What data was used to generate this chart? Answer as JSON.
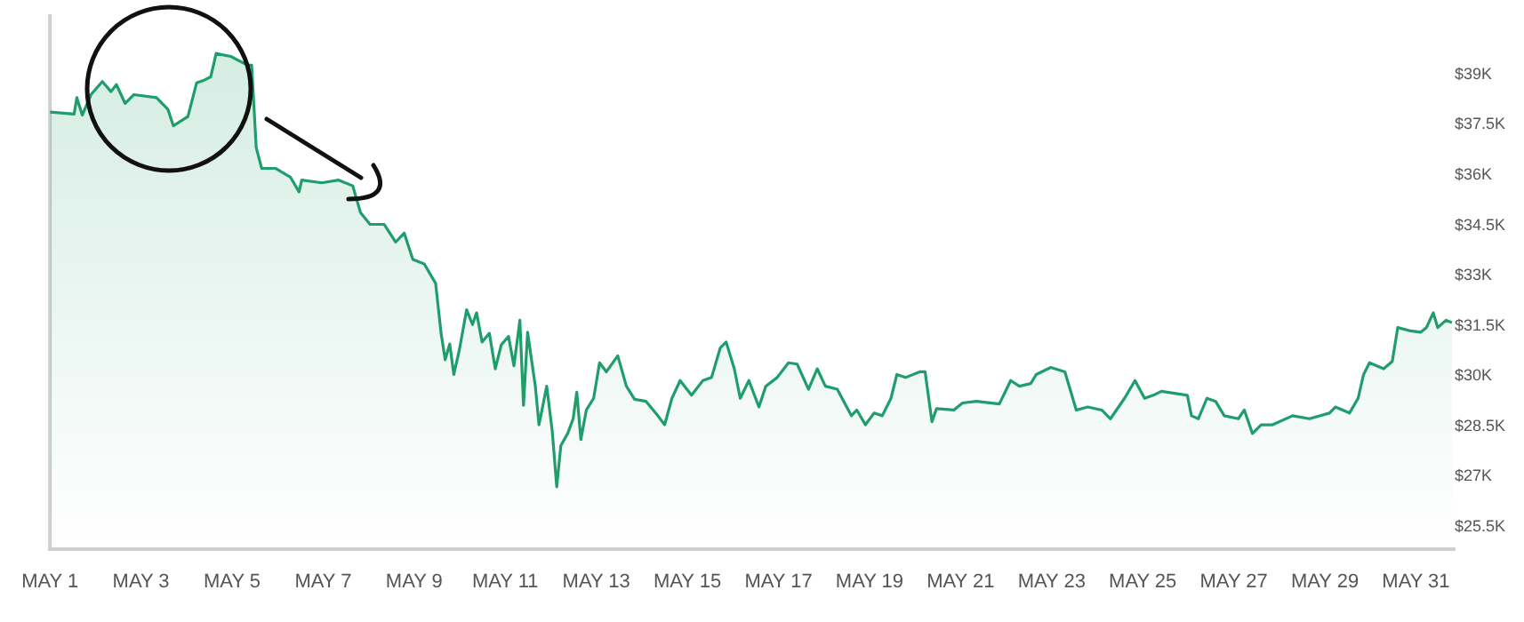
{
  "chart_data": {
    "type": "area",
    "x": [
      "--05-01T00:00",
      "--05-01T12:43",
      "--05-01T14:10",
      "--05-01T17:02",
      "--05-01T21:36",
      "--05-02T03:36",
      "--05-02T08:10",
      "--05-02T11:02",
      "--05-02T15:36",
      "--05-02T20:10",
      "--05-03T08:10",
      "--05-03T14:10",
      "--05-03T17:02",
      "--05-04T00:43",
      "--05-04T05:17",
      "--05-04T09:36",
      "--05-04T12:43",
      "--05-04T15:36",
      "--05-04T23:17",
      "--05-05T08:10",
      "--05-05T10:19",
      "--05-05T12:43",
      "--05-05T15:36",
      "--05-05T23:02",
      "--05-06T06:43",
      "--05-06T11:17",
      "--05-06T12:43",
      "--05-06T23:17",
      "--05-07T08:10",
      "--05-07T15:36",
      "--05-07T19:41",
      "--05-08T00:43",
      "--05-08T08:10",
      "--05-08T14:10",
      "--05-08T18:43",
      "--05-08T23:17",
      "--05-09T05:17",
      "--05-09T11:17",
      "--05-09T14:10",
      "--05-09T16:19",
      "--05-09T18:43",
      "--05-09T20:53",
      "--05-09T23:46",
      "--05-10T03:36",
      "--05-10T06:43",
      "--05-10T08:53",
      "--05-10T11:46",
      "--05-10T15:36",
      "--05-10T18:43",
      "--05-10T21:50",
      "--05-11T01:41",
      "--05-11T04:34",
      "--05-11T07:41",
      "--05-11T09:36",
      "--05-11T11:46",
      "--05-11T15:50",
      "--05-11T17:46",
      "--05-11T21:50",
      "--05-12T00:43",
      "--05-12T03:07",
      "--05-12T05:17",
      "--05-12T08:53",
      "--05-12T11:46",
      "--05-12T13:41",
      "--05-12T15:50",
      "--05-12T18:43",
      "--05-12T22:34",
      "--05-13T01:41",
      "--05-13T05:17",
      "--05-13T11:17",
      "--05-13T15:50",
      "--05-13T20:10",
      "--05-14T02:10",
      "--05-14T08:24",
      "--05-14T12:00",
      "--05-14T15:50",
      "--05-14T20:10",
      "--05-15T02:10",
      "--05-15T08:10",
      "--05-15T12:43",
      "--05-15T17:17",
      "--05-15T20:24",
      "--05-16T00:43",
      "--05-16T03:50",
      "--05-16T08:24",
      "--05-16T13:41",
      "--05-16T17:17",
      "--05-16T23:17",
      "--05-17T05:17",
      "--05-17T09:50",
      "--05-17T15:50",
      "--05-17T20:24",
      "--05-18T00:43",
      "--05-18T06:58",
      "--05-18T14:24",
      "--05-18T17:17",
      "--05-18T21:50",
      "--05-19T02:24",
      "--05-19T06:43",
      "--05-19T11:17",
      "--05-19T14:24",
      "--05-19T18:58",
      "--05-20T02:24",
      "--05-20T05:17",
      "--05-20T08:53",
      "--05-20T11:17",
      "--05-20T20:24",
      "--05-21T00:58",
      "--05-21T08:24",
      "--05-21T20:24",
      "--05-22T02:24",
      "--05-22T06:58",
      "--05-22T12:58",
      "--05-22T15:50",
      "--05-22T23:31",
      "--05-23T06:58",
      "--05-23T12:58",
      "--05-23T18:58",
      "--05-24T02:24",
      "--05-24T06:58",
      "--05-24T14:24",
      "--05-24T19:55",
      "--05-25T00:58",
      "--05-25T05:31",
      "--05-25T09:50",
      "--05-25T23:31",
      "--05-26T01:41",
      "--05-26T05:17",
      "--05-26T09:50",
      "--05-26T14:24",
      "--05-26T18:58",
      "--05-27T02:24",
      "--05-27T05:31",
      "--05-27T09:50",
      "--05-27T14:24",
      "--05-27T20:24",
      "--05-28T06:58",
      "--05-28T15:50",
      "--05-29T02:24",
      "--05-29T05:31",
      "--05-29T12:58",
      "--05-29T17:31",
      "--05-29T20:24",
      "--05-29T23:31",
      "--05-30T06:58",
      "--05-30T11:31",
      "--05-30T14:24",
      "--05-30T20:24",
      "--05-31T02:24",
      "--05-31T05:31",
      "--05-31T09:07",
      "--05-31T11:31",
      "--05-31T15:50",
      "--05-31T18:58"
    ],
    "series": [
      {
        "color": "#1f9d6c",
        "values": [
          37880,
          37820,
          38310,
          37790,
          38400,
          38790,
          38490,
          38700,
          38140,
          38400,
          38310,
          37960,
          37470,
          37750,
          38750,
          38840,
          38930,
          39630,
          39540,
          39280,
          39280,
          36820,
          36200,
          36200,
          35940,
          35500,
          35850,
          35770,
          35850,
          35680,
          34880,
          34530,
          34530,
          34000,
          34270,
          33480,
          33350,
          32770,
          31280,
          30490,
          30960,
          30050,
          30780,
          31980,
          31540,
          31890,
          31020,
          31280,
          30220,
          30930,
          31190,
          30310,
          31670,
          29130,
          31310,
          29700,
          28550,
          29700,
          28380,
          26700,
          27930,
          28290,
          28730,
          29520,
          28110,
          28990,
          29340,
          30400,
          30130,
          30610,
          29700,
          29310,
          29250,
          28820,
          28550,
          29340,
          29870,
          29430,
          29870,
          29960,
          30840,
          31020,
          30220,
          29340,
          29870,
          29080,
          29700,
          29960,
          30400,
          30360,
          29610,
          30220,
          29700,
          29610,
          28820,
          28990,
          28550,
          28900,
          28820,
          29340,
          30050,
          29960,
          30130,
          30130,
          28640,
          29030,
          28990,
          29200,
          29250,
          29170,
          29870,
          29700,
          29780,
          30050,
          30260,
          30130,
          28990,
          29080,
          28990,
          28730,
          29340,
          29870,
          29340,
          29430,
          29550,
          29430,
          28820,
          28730,
          29340,
          29250,
          28820,
          28730,
          28990,
          28290,
          28550,
          28550,
          28820,
          28730,
          28900,
          29080,
          28900,
          29340,
          30050,
          30400,
          30220,
          30440,
          31450,
          31360,
          31310,
          31450,
          31890,
          31450,
          31670,
          31600
        ]
      }
    ],
    "xlim": [
      "--05-01T00:00",
      "--05-31T20:24"
    ],
    "xticks": [
      {
        "value": "--05-01",
        "label": "MAY 1"
      },
      {
        "value": "--05-03",
        "label": "MAY 3"
      },
      {
        "value": "--05-05",
        "label": "MAY 5"
      },
      {
        "value": "--05-07",
        "label": "MAY 7"
      },
      {
        "value": "--05-09",
        "label": "MAY 9"
      },
      {
        "value": "--05-11",
        "label": "MAY 11"
      },
      {
        "value": "--05-13",
        "label": "MAY 13"
      },
      {
        "value": "--05-15",
        "label": "MAY 15"
      },
      {
        "value": "--05-17",
        "label": "MAY 17"
      },
      {
        "value": "--05-19",
        "label": "MAY 19"
      },
      {
        "value": "--05-21",
        "label": "MAY 21"
      },
      {
        "value": "--05-23",
        "label": "MAY 23"
      },
      {
        "value": "--05-25",
        "label": "MAY 25"
      },
      {
        "value": "--05-27",
        "label": "MAY 27"
      },
      {
        "value": "--05-29",
        "label": "MAY 29"
      },
      {
        "value": "--05-31",
        "label": "MAY 31"
      }
    ],
    "ylim": [
      24850,
      40800
    ],
    "yticks": [
      {
        "value": 25500,
        "label": "$25.5K"
      },
      {
        "value": 27000,
        "label": "$27K"
      },
      {
        "value": 28500,
        "label": "$28.5K"
      },
      {
        "value": 30000,
        "label": "$30K"
      },
      {
        "value": 31500,
        "label": "$31.5K"
      },
      {
        "value": 33000,
        "label": "$33K"
      },
      {
        "value": 34500,
        "label": "$34.5K"
      },
      {
        "value": 36000,
        "label": "$36K"
      },
      {
        "value": 37500,
        "label": "$37.5K"
      },
      {
        "value": 39000,
        "label": "$39K"
      }
    ],
    "grid": false,
    "legend": false,
    "marker": "none",
    "line_style": "solid"
  }
}
